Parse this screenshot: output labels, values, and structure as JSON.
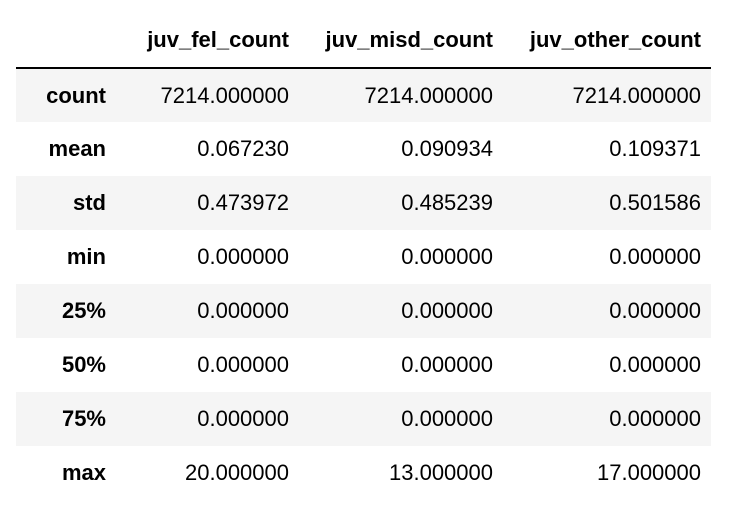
{
  "table": {
    "columns": [
      "juv_fel_count",
      "juv_misd_count",
      "juv_other_count"
    ],
    "rows": [
      {
        "label": "count",
        "values": [
          "7214.000000",
          "7214.000000",
          "7214.000000"
        ]
      },
      {
        "label": "mean",
        "values": [
          "0.067230",
          "0.090934",
          "0.109371"
        ]
      },
      {
        "label": "std",
        "values": [
          "0.473972",
          "0.485239",
          "0.501586"
        ]
      },
      {
        "label": "min",
        "values": [
          "0.000000",
          "0.000000",
          "0.000000"
        ]
      },
      {
        "label": "25%",
        "values": [
          "0.000000",
          "0.000000",
          "0.000000"
        ]
      },
      {
        "label": "50%",
        "values": [
          "0.000000",
          "0.000000",
          "0.000000"
        ]
      },
      {
        "label": "75%",
        "values": [
          "0.000000",
          "0.000000",
          "0.000000"
        ]
      },
      {
        "label": "max",
        "values": [
          "20.000000",
          "13.000000",
          "17.000000"
        ]
      }
    ]
  },
  "colors": {
    "stripe": "#f5f5f5",
    "background": "#ffffff",
    "header_rule": "#000000"
  }
}
